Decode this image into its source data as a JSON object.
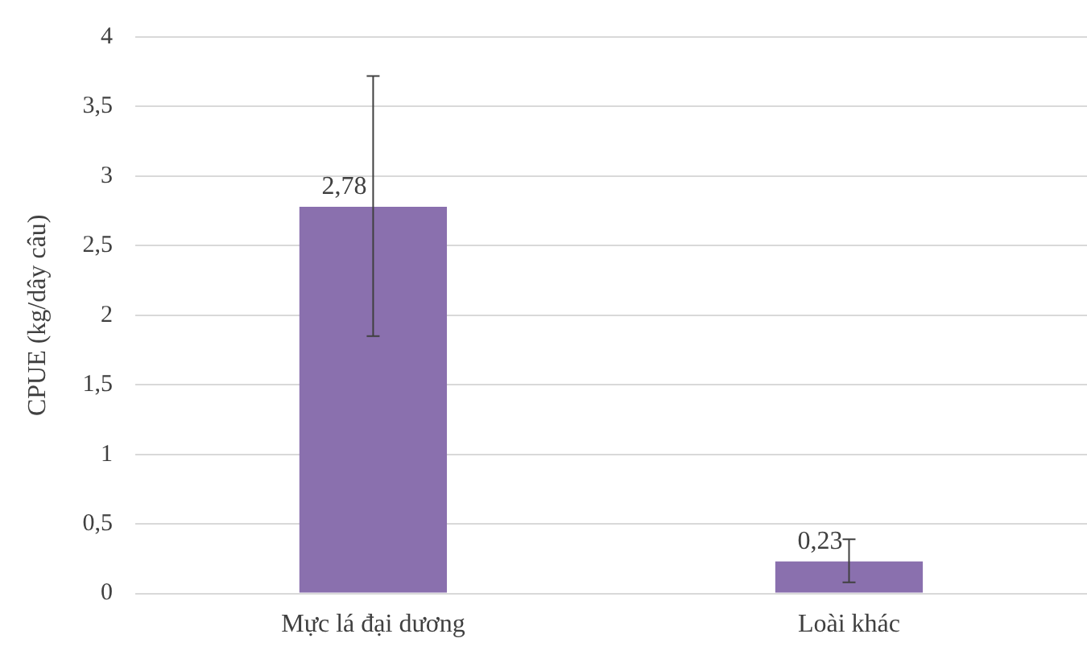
{
  "chart_data": {
    "type": "bar",
    "ylabel": "CPUE (kg/dây câu)",
    "categories": [
      "Mực lá đại dương",
      "Loài khác"
    ],
    "values": [
      2.78,
      0.23
    ],
    "color": "#8a70ae",
    "errors": [
      [
        1.85,
        3.72
      ],
      [
        0.08,
        0.39
      ]
    ],
    "value_labels": [
      "2,78",
      "0,23"
    ],
    "ylim": [
      0,
      4
    ],
    "yticks": [
      0,
      {
        "value": 0.5,
        "label": "0,5"
      },
      1,
      {
        "value": 1.5,
        "label": "1,5"
      },
      2,
      {
        "value": 2.5,
        "label": "2,5"
      },
      3,
      {
        "value": 3.5,
        "label": "3,5"
      },
      4
    ],
    "grid": "y",
    "legend": false
  }
}
